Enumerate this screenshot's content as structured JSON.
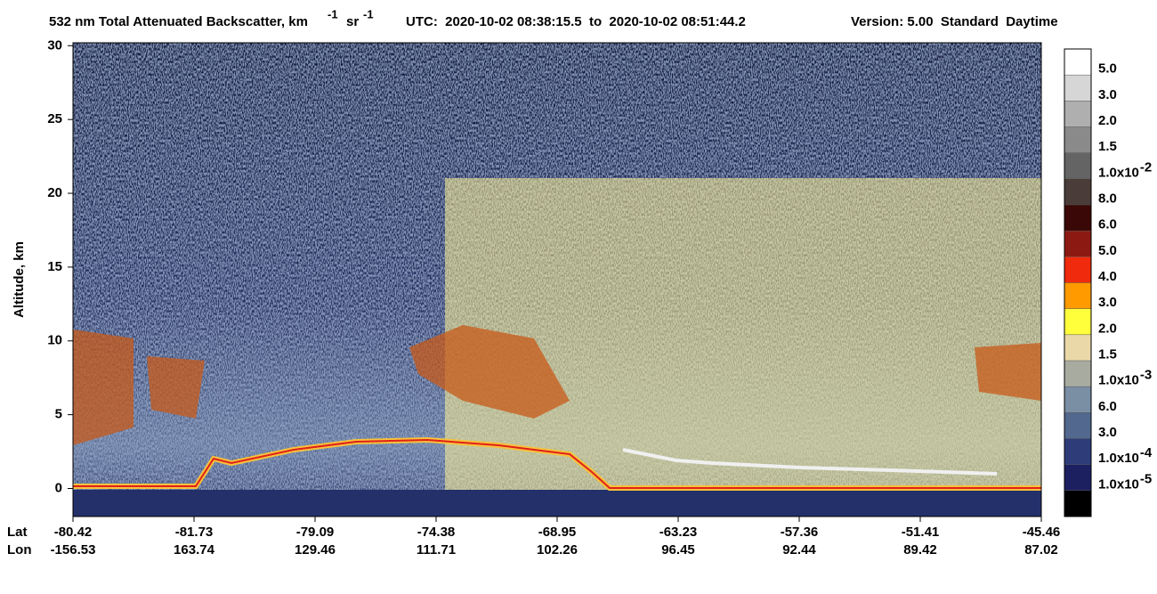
{
  "chart_data": {
    "type": "curtain",
    "title": {
      "text": "532 nm Total Attenuated Backscatter, km",
      "sup1": "-1",
      "mid": "sr",
      "sup2": "-1"
    },
    "time_info": "UTC:  2020-10-02 08:38:15.5  to  2020-10-02 08:51:44.2",
    "version": "Version: 5.00  Standard  Daytime",
    "y_label": "Altitude, km",
    "ylim": [
      -1.9,
      30.2
    ],
    "yticks": [
      0,
      5,
      10,
      15,
      20,
      25,
      30
    ],
    "x_rows": [
      "Lat",
      "Lon"
    ],
    "lat": [
      "-80.42",
      "-81.73",
      "-79.09",
      "-74.38",
      "-68.95",
      "-63.23",
      "-57.36",
      "-51.41",
      "-45.46"
    ],
    "lon": [
      "-156.53",
      "163.74",
      "129.46",
      "111.71",
      "102.26",
      "96.45",
      "92.44",
      "89.42",
      "87.02"
    ],
    "colorbar": [
      {
        "color": "#ffffff",
        "label": "5.0"
      },
      {
        "color": "#d6d6d6",
        "label": "3.0"
      },
      {
        "color": "#afafaf",
        "label": "2.0"
      },
      {
        "color": "#8a8a8a",
        "label": "1.5"
      },
      {
        "color": "#646464",
        "label": "1.0x10",
        "exp": "-2"
      },
      {
        "color": "#4a3c38",
        "label": "8.0"
      },
      {
        "color": "#3a0806",
        "label": "6.0"
      },
      {
        "color": "#8c1a12",
        "label": "5.0"
      },
      {
        "color": "#f02a0c",
        "label": "4.0"
      },
      {
        "color": "#ff9a00",
        "label": "3.0"
      },
      {
        "color": "#ffff3c",
        "label": "2.0"
      },
      {
        "color": "#ead8a8",
        "label": "1.5"
      },
      {
        "color": "#a8aca0",
        "label": "1.0x10",
        "exp": "-3"
      },
      {
        "color": "#7a8ea4",
        "label": "6.0"
      },
      {
        "color": "#52688e",
        "label": "3.0"
      },
      {
        "color": "#2e3c7a",
        "label": "1.0x10",
        "exp": "-4"
      },
      {
        "color": "#1c1f60",
        "label": "1.0x10",
        "exp": "-5"
      },
      {
        "color": "#000000",
        "label": null
      }
    ]
  }
}
